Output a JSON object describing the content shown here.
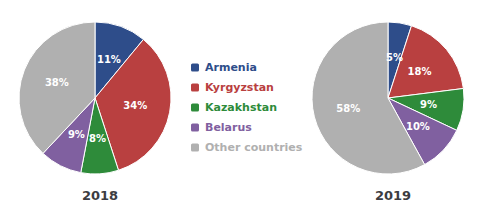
{
  "chart_data": [
    {
      "type": "pie",
      "title": "2018",
      "categories": [
        "Armenia",
        "Kyrgyzstan",
        "Kazakhstan",
        "Belarus",
        "Other countries"
      ],
      "values": [
        11,
        34,
        8,
        9,
        38
      ],
      "value_labels": [
        "11%",
        "34%",
        "8%",
        "9%",
        "38%"
      ],
      "colors": [
        "#2e4d8a",
        "#b94040",
        "#2e8b3a",
        "#8060a0",
        "#b0b0b0"
      ],
      "data_labels": true,
      "legend": "center"
    },
    {
      "type": "pie",
      "title": "2019",
      "categories": [
        "Armenia",
        "Kyrgyzstan",
        "Kazakhstan",
        "Belarus",
        "Other countries"
      ],
      "values": [
        5,
        18,
        9,
        10,
        58
      ],
      "value_labels": [
        "5%",
        "18%",
        "9%",
        "10%",
        "58%"
      ],
      "colors": [
        "#2e4d8a",
        "#b94040",
        "#2e8b3a",
        "#8060a0",
        "#b0b0b0"
      ],
      "data_labels": true
    }
  ]
}
